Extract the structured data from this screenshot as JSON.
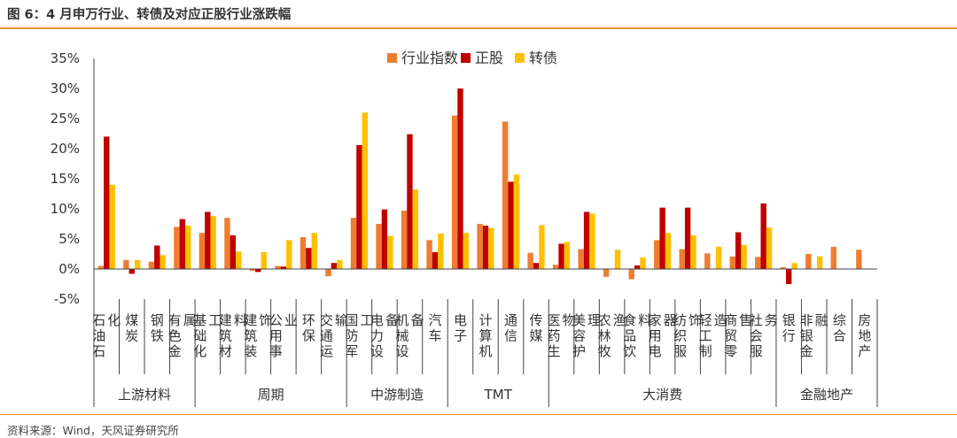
{
  "figure_title": "图 6：4 月申万行业、转债及对应正股行业涨跌幅",
  "source": "资料来源：Wind，天风证券研究所",
  "colors": {
    "index": "#ed7d31",
    "stock": "#c00000",
    "convertible": "#ffc000",
    "rule": "#e8913a"
  },
  "chart_data": {
    "type": "bar",
    "title": "",
    "xlabel": "",
    "ylabel": "",
    "ylim": [
      -5,
      35
    ],
    "yticks": [
      "-5%",
      "0%",
      "5%",
      "10%",
      "15%",
      "20%",
      "25%",
      "30%",
      "35%"
    ],
    "legend_position": "top-center",
    "categories": [
      "石油石化",
      "煤炭",
      "钢铁",
      "有色金属",
      "基础化工",
      "建筑材料",
      "建筑装饰",
      "公用事业",
      "环保",
      "交通运输",
      "国防军工",
      "电力设备",
      "机械设备",
      "汽车",
      "电子",
      "计算机",
      "通信",
      "传媒",
      "医药生物",
      "美容护理",
      "农林牧渔",
      "食品饮料",
      "家用电器",
      "纺织服饰",
      "轻工制造",
      "商贸零售",
      "社会服务",
      "银行",
      "非银金融",
      "综合",
      "房地产"
    ],
    "groups": [
      {
        "name": "上游材料",
        "count": 4
      },
      {
        "name": "周期",
        "count": 6
      },
      {
        "name": "中游制造",
        "count": 4
      },
      {
        "name": "TMT",
        "count": 4
      },
      {
        "name": "大消费",
        "count": 9
      },
      {
        "name": "金融地产",
        "count": 4
      }
    ],
    "series": [
      {
        "name": "行业指数",
        "values": [
          0.5,
          1.5,
          1.2,
          7.0,
          6.0,
          8.5,
          -0.3,
          0.5,
          5.3,
          -1.2,
          8.5,
          7.5,
          9.7,
          4.8,
          25.5,
          7.5,
          24.5,
          2.7,
          0.7,
          3.3,
          -1.3,
          -1.7,
          4.8,
          3.3,
          2.6,
          2.1,
          2.0,
          0.3,
          2.5,
          3.7,
          3.2
        ]
      },
      {
        "name": "正股",
        "values": [
          22.0,
          -0.8,
          3.9,
          8.3,
          9.5,
          5.6,
          -0.5,
          0.4,
          3.5,
          1.0,
          20.6,
          9.9,
          22.4,
          2.8,
          30.0,
          7.2,
          14.5,
          1.0,
          4.2,
          9.5,
          0.0,
          0.6,
          10.2,
          10.2,
          0.0,
          6.1,
          10.9,
          -2.5,
          0.0,
          0.0,
          0.0
        ]
      },
      {
        "name": "转债",
        "values": [
          14.0,
          1.5,
          2.3,
          7.2,
          8.8,
          2.9,
          2.8,
          4.8,
          6.0,
          1.5,
          26.0,
          5.5,
          13.2,
          5.9,
          6.0,
          6.8,
          15.7,
          7.3,
          4.5,
          9.2,
          3.2,
          1.9,
          6.0,
          5.6,
          3.7,
          4.0,
          6.9,
          1.0,
          2.1,
          0.0,
          0.0
        ]
      }
    ]
  }
}
